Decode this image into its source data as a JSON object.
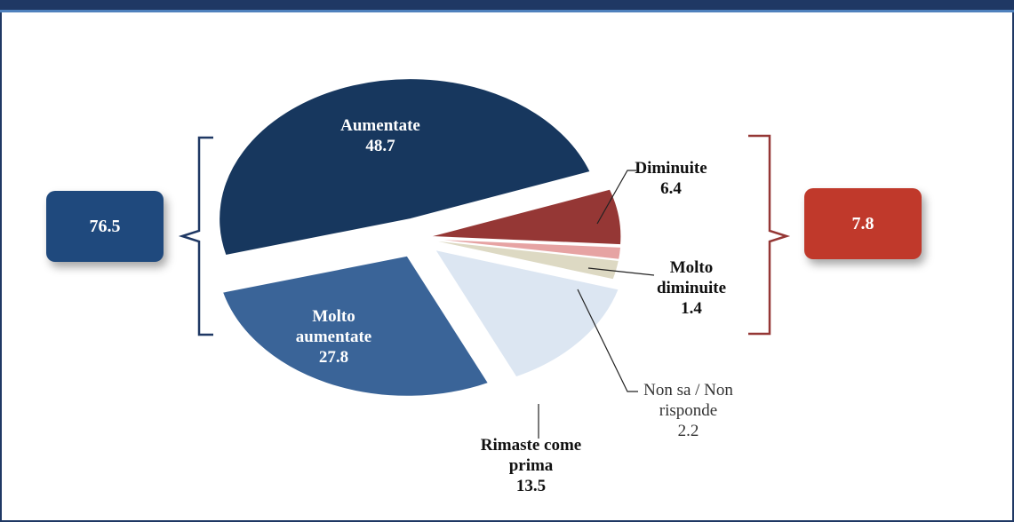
{
  "chart_data": {
    "type": "pie",
    "categories": [
      "Aumentate",
      "Diminuite",
      "Molto diminuite",
      "Non sa / Non risponde",
      "Rimaste come prima",
      "Molto aumentate"
    ],
    "values": [
      48.7,
      6.4,
      1.4,
      2.2,
      13.5,
      27.8
    ],
    "colors": [
      "#17375e",
      "#953735",
      "#e6a3a3",
      "#ddd9c3",
      "#dce6f2",
      "#3a6498"
    ],
    "groups": [
      {
        "value": 76.5,
        "color": "#1f497d"
      },
      {
        "value": 7.8,
        "color": "#c0392b"
      }
    ]
  }
}
